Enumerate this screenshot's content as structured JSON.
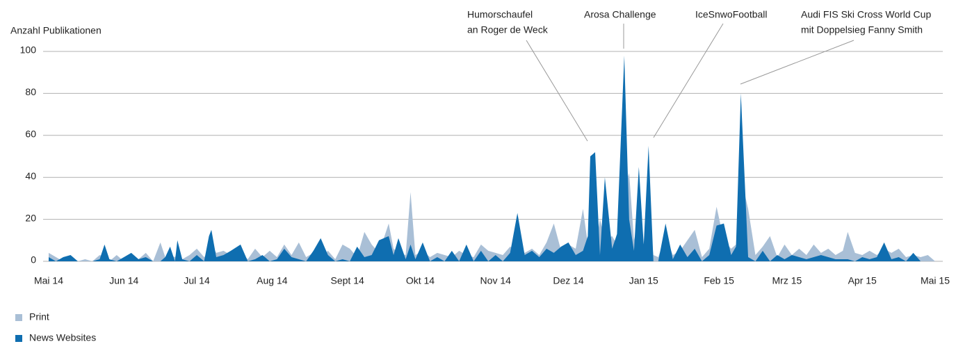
{
  "chart_data": {
    "type": "area",
    "y_label": "Anzahl Publikationen",
    "xlim": [
      0,
      365
    ],
    "xticks": [
      {
        "value": 0,
        "label": "Mai 14"
      },
      {
        "value": 31,
        "label": "Jun 14"
      },
      {
        "value": 61,
        "label": "Jul 14"
      },
      {
        "value": 92,
        "label": "Aug 14"
      },
      {
        "value": 123,
        "label": "Sept 14"
      },
      {
        "value": 153,
        "label": "Okt 14"
      },
      {
        "value": 184,
        "label": "Nov 14"
      },
      {
        "value": 214,
        "label": "Dez 14"
      },
      {
        "value": 245,
        "label": "Jan 15"
      },
      {
        "value": 276,
        "label": "Feb 15"
      },
      {
        "value": 304,
        "label": "Mrz 15"
      },
      {
        "value": 335,
        "label": "Apr 15"
      },
      {
        "value": 365,
        "label": "Mai 15"
      }
    ],
    "ylim": [
      0,
      100
    ],
    "yticks": [
      0,
      20,
      40,
      60,
      80,
      100
    ],
    "grid": true,
    "legend": "bottom-left",
    "x": [
      0,
      3,
      6,
      9,
      12,
      15,
      18,
      21,
      23,
      25,
      28,
      31,
      34,
      37,
      40,
      43,
      46,
      48,
      50,
      52,
      53,
      55,
      58,
      61,
      64,
      66,
      67,
      69,
      72,
      75,
      79,
      82,
      85,
      88,
      91,
      94,
      97,
      100,
      103,
      106,
      109,
      112,
      115,
      118,
      121,
      124,
      127,
      130,
      133,
      136,
      140,
      142,
      144,
      147,
      149,
      151,
      154,
      157,
      160,
      163,
      166,
      169,
      172,
      175,
      178,
      181,
      184,
      187,
      190,
      193,
      196,
      199,
      202,
      205,
      208,
      211,
      214,
      217,
      220,
      222,
      223,
      225,
      227,
      229,
      232,
      234,
      237,
      239,
      241,
      243,
      245,
      247,
      249,
      251,
      254,
      257,
      260,
      263,
      266,
      269,
      272,
      275,
      278,
      281,
      283,
      285,
      288,
      291,
      294,
      297,
      300,
      303,
      306,
      309,
      312,
      315,
      318,
      321,
      324,
      327,
      329,
      332,
      335,
      338,
      341,
      344,
      347,
      350,
      353,
      356,
      359,
      362,
      365
    ],
    "series": [
      {
        "name": "Print",
        "color": "#a9bfd6",
        "values": [
          4,
          2,
          0,
          3,
          0,
          1,
          0,
          3,
          2,
          0,
          3,
          0,
          3,
          1,
          4,
          0,
          9,
          2,
          3,
          2,
          4,
          1,
          3,
          6,
          2,
          4,
          8,
          4,
          5,
          3,
          4,
          1,
          6,
          2,
          5,
          2,
          8,
          3,
          9,
          2,
          4,
          2,
          5,
          1,
          8,
          6,
          2,
          14,
          8,
          4,
          18,
          6,
          4,
          3,
          33,
          3,
          5,
          2,
          4,
          3,
          2,
          5,
          3,
          2,
          8,
          5,
          4,
          3,
          7,
          5,
          4,
          6,
          3,
          9,
          18,
          5,
          8,
          6,
          25,
          8,
          10,
          6,
          20,
          10,
          12,
          8,
          35,
          42,
          10,
          20,
          8,
          20,
          3,
          2,
          12,
          3,
          5,
          10,
          15,
          2,
          6,
          26,
          10,
          6,
          8,
          40,
          25,
          3,
          7,
          12,
          2,
          8,
          3,
          6,
          3,
          8,
          4,
          6,
          3,
          5,
          14,
          4,
          3,
          5,
          3,
          6,
          4,
          6,
          2,
          3,
          2,
          3,
          0
        ]
      },
      {
        "name": "News Websites",
        "color": "#0f6eb0",
        "values": [
          2,
          0,
          2,
          3,
          0,
          0,
          0,
          1,
          8,
          1,
          0,
          2,
          4,
          1,
          2,
          0,
          0,
          2,
          7,
          0,
          10,
          1,
          0,
          3,
          0,
          12,
          15,
          2,
          3,
          5,
          8,
          0,
          1,
          3,
          0,
          1,
          6,
          2,
          1,
          0,
          5,
          11,
          3,
          0,
          1,
          0,
          7,
          2,
          3,
          10,
          12,
          3,
          11,
          1,
          8,
          1,
          9,
          0,
          2,
          0,
          5,
          0,
          8,
          0,
          5,
          0,
          3,
          0,
          4,
          23,
          3,
          5,
          2,
          6,
          4,
          7,
          9,
          3,
          5,
          12,
          50,
          52,
          3,
          40,
          6,
          13,
          98,
          20,
          5,
          45,
          8,
          55,
          0,
          0,
          18,
          1,
          8,
          2,
          6,
          0,
          3,
          17,
          18,
          3,
          7,
          80,
          2,
          0,
          5,
          0,
          3,
          1,
          3,
          2,
          1,
          2,
          3,
          2,
          1,
          1,
          1,
          0,
          2,
          1,
          2,
          9,
          1,
          2,
          0,
          4,
          0,
          0,
          0
        ]
      }
    ],
    "annotations": [
      {
        "lines": [
          "Humorschaufel",
          "an Roger de Weck"
        ]
      },
      {
        "lines": [
          "Arosa Challenge"
        ]
      },
      {
        "lines": [
          "IceSnwoFootball"
        ]
      },
      {
        "lines": [
          "Audi FIS Ski Cross World Cup",
          "mit Doppelsieg Fanny Smith"
        ]
      }
    ]
  }
}
